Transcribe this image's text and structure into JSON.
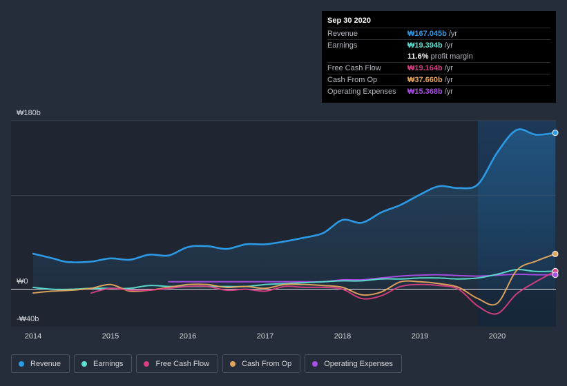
{
  "tooltip": {
    "date": "Sep 30 2020",
    "rows": [
      {
        "label": "Revenue",
        "value": "₩167.045b",
        "unit": "/yr",
        "color": "#2d9ae6"
      },
      {
        "label": "Earnings",
        "value": "₩19.394b",
        "unit": "/yr",
        "color": "#5ce0d0"
      },
      {
        "label": "",
        "value": "11.6%",
        "unit": "profit margin",
        "color": "#ffffff"
      },
      {
        "label": "Free Cash Flow",
        "value": "₩19.164b",
        "unit": "/yr",
        "color": "#d83e82"
      },
      {
        "label": "Cash From Op",
        "value": "₩37.660b",
        "unit": "/yr",
        "color": "#e6a65e"
      },
      {
        "label": "Operating Expenses",
        "value": "₩15.368b",
        "unit": "/yr",
        "color": "#a94ee6"
      }
    ]
  },
  "legend": [
    {
      "label": "Revenue",
      "color": "#2d9ae6"
    },
    {
      "label": "Earnings",
      "color": "#5ce0d0"
    },
    {
      "label": "Free Cash Flow",
      "color": "#d83e82"
    },
    {
      "label": "Cash From Op",
      "color": "#e6a65e"
    },
    {
      "label": "Operating Expenses",
      "color": "#a94ee6"
    }
  ],
  "chart_data": {
    "type": "line",
    "title": "",
    "xlabel": "",
    "ylabel": "",
    "ylim": [
      -40,
      180
    ],
    "xlim": [
      2013.9,
      2020.75
    ],
    "y_tick_labels": [
      {
        "value": 180,
        "label": "₩180b"
      },
      {
        "value": 0,
        "label": "₩0"
      },
      {
        "value": -40,
        "label": "-₩40b"
      }
    ],
    "x_tick_labels": [
      "2014",
      "2015",
      "2016",
      "2017",
      "2018",
      "2019",
      "2020"
    ],
    "x_ticks": [
      2014,
      2015,
      2016,
      2017,
      2018,
      2019,
      2020
    ],
    "highlight_start": 2019.75,
    "series": [
      {
        "name": "Revenue",
        "color": "#2d9ae6",
        "fill": true,
        "x": [
          2013.9,
          2014.25,
          2014.45,
          2014.75,
          2015.0,
          2015.25,
          2015.5,
          2015.75,
          2016.0,
          2016.25,
          2016.5,
          2016.75,
          2017.0,
          2017.25,
          2017.5,
          2017.75,
          2018.0,
          2018.25,
          2018.5,
          2018.75,
          2019.0,
          2019.25,
          2019.5,
          2019.75,
          2020.0,
          2020.25,
          2020.5,
          2020.75
        ],
        "values": [
          38,
          33,
          29,
          29.5,
          33,
          31.5,
          37,
          36,
          45,
          46,
          43,
          48,
          48,
          51,
          55,
          60,
          74,
          71,
          82,
          90,
          101,
          110,
          108,
          112,
          146,
          170,
          165,
          167
        ]
      },
      {
        "name": "Earnings",
        "color": "#5ce0d0",
        "fill": false,
        "x": [
          2013.9,
          2014.25,
          2014.5,
          2014.75,
          2015.0,
          2015.25,
          2015.5,
          2015.75,
          2016.0,
          2016.25,
          2016.5,
          2016.75,
          2017.0,
          2017.25,
          2017.5,
          2017.75,
          2018.0,
          2018.25,
          2018.5,
          2018.75,
          2019.0,
          2019.25,
          2019.5,
          2019.75,
          2020.0,
          2020.25,
          2020.5,
          2020.75
        ],
        "values": [
          2,
          0,
          0,
          1,
          1,
          1,
          4,
          3,
          3,
          3,
          3,
          3,
          5,
          6,
          7,
          8,
          9,
          9,
          11,
          11,
          12,
          12,
          11,
          12,
          16,
          21,
          19,
          19.4
        ]
      },
      {
        "name": "Free Cash Flow",
        "color": "#d83e82",
        "fill": false,
        "x": [
          2014.75,
          2015.0,
          2015.25,
          2015.5,
          2015.75,
          2016.0,
          2016.25,
          2016.5,
          2016.75,
          2017.0,
          2017.25,
          2017.5,
          2017.75,
          2018.0,
          2018.25,
          2018.5,
          2018.75,
          2019.0,
          2019.25,
          2019.5,
          2019.75,
          2020.0,
          2020.25,
          2020.5,
          2020.75
        ],
        "values": [
          -4,
          1,
          -1,
          -1,
          1,
          3,
          3,
          -1,
          0,
          -2,
          3,
          2,
          2,
          0,
          -10,
          -7,
          3,
          5,
          4,
          0,
          -18,
          -26,
          -5,
          8,
          19.2
        ]
      },
      {
        "name": "Cash From Op",
        "color": "#e6a65e",
        "fill": false,
        "x": [
          2013.9,
          2014.25,
          2014.5,
          2014.75,
          2015.0,
          2015.25,
          2015.5,
          2015.75,
          2016.0,
          2016.25,
          2016.5,
          2016.75,
          2017.0,
          2017.25,
          2017.5,
          2017.75,
          2018.0,
          2018.25,
          2018.5,
          2018.75,
          2019.0,
          2019.25,
          2019.5,
          2019.75,
          2020.0,
          2020.25,
          2020.5,
          2020.75
        ],
        "values": [
          -4,
          -2,
          -1,
          1,
          5,
          -2,
          -1,
          2,
          5,
          5,
          2,
          3,
          1,
          5,
          5,
          4,
          2,
          -6,
          -3,
          8,
          8,
          6,
          2,
          -10,
          -15,
          20,
          30,
          37.7
        ]
      },
      {
        "name": "Operating Expenses",
        "color": "#a94ee6",
        "fill": false,
        "x": [
          2015.75,
          2016.0,
          2016.5,
          2017.0,
          2017.5,
          2017.75,
          2018.0,
          2018.25,
          2018.5,
          2018.75,
          2019.0,
          2019.25,
          2019.5,
          2019.75,
          2020.0,
          2020.25,
          2020.5,
          2020.75
        ],
        "values": [
          8,
          8,
          8,
          8,
          8,
          8,
          10,
          10,
          12,
          14,
          15,
          15.5,
          14.5,
          14,
          15,
          16,
          15.5,
          15.4
        ]
      }
    ]
  }
}
